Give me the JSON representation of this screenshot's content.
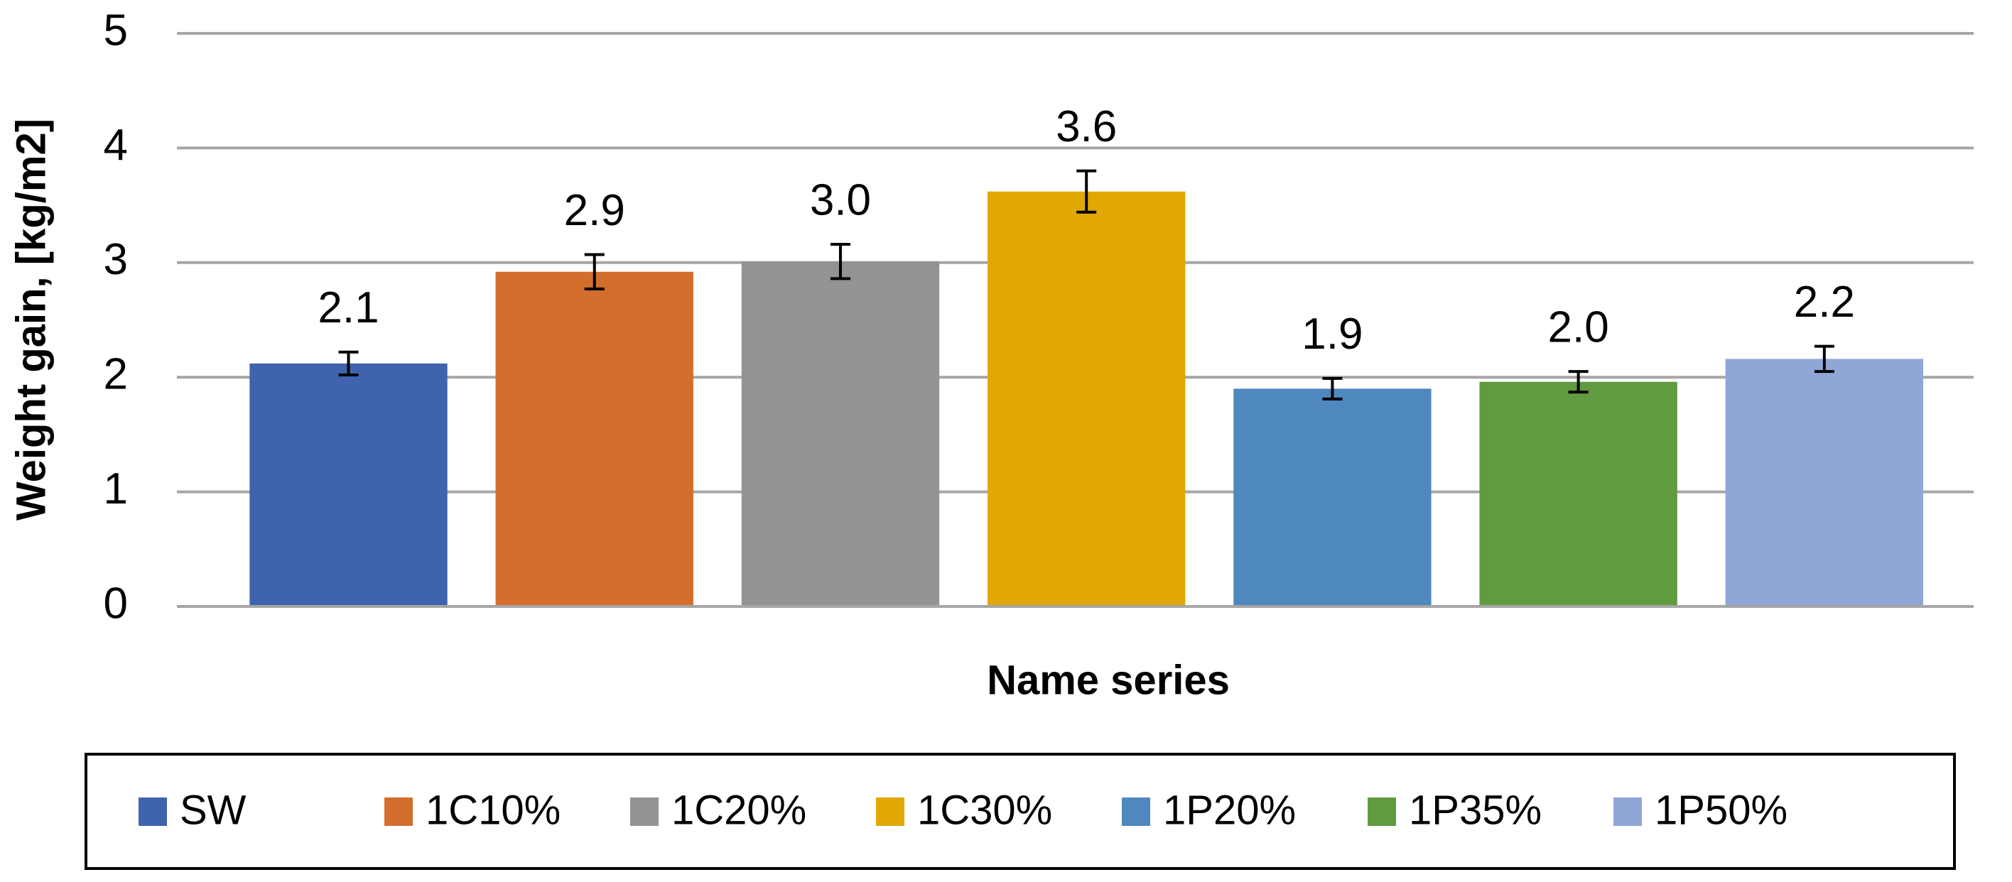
{
  "chart_data": {
    "type": "bar",
    "ylabel": "Weight gain, [kg/m2]",
    "xlabel": "Name series",
    "ylim": [
      0,
      5
    ],
    "yticks": [
      0,
      1,
      2,
      3,
      4,
      5
    ],
    "grid": true,
    "series": [
      {
        "name": "SW",
        "color": "#3f64ad",
        "values": [
          2.12
        ],
        "errors": [
          0.1
        ],
        "value_labels": [
          "2.1"
        ]
      },
      {
        "name": "1C10%",
        "color": "#d46e2d",
        "values": [
          2.92
        ],
        "errors": [
          0.15
        ],
        "value_labels": [
          "2.9"
        ]
      },
      {
        "name": "1C20%",
        "color": "#939393",
        "values": [
          3.01
        ],
        "errors": [
          0.15
        ],
        "value_labels": [
          "3.0"
        ]
      },
      {
        "name": "1C30%",
        "color": "#e0a800",
        "values": [
          3.62
        ],
        "errors": [
          0.18
        ],
        "value_labels": [
          "3.6"
        ]
      },
      {
        "name": "1P20%",
        "color": "#4f88be",
        "values": [
          1.9
        ],
        "errors": [
          0.09
        ],
        "value_labels": [
          "1.9"
        ]
      },
      {
        "name": "1P35%",
        "color": "#609a41",
        "values": [
          1.96
        ],
        "errors": [
          0.09
        ],
        "value_labels": [
          "2.0"
        ]
      },
      {
        "name": "1P50%",
        "color": "#8fa6d6",
        "values": [
          2.16
        ],
        "errors": [
          0.11
        ],
        "value_labels": [
          "2.2"
        ]
      }
    ],
    "legend": "bottom"
  }
}
